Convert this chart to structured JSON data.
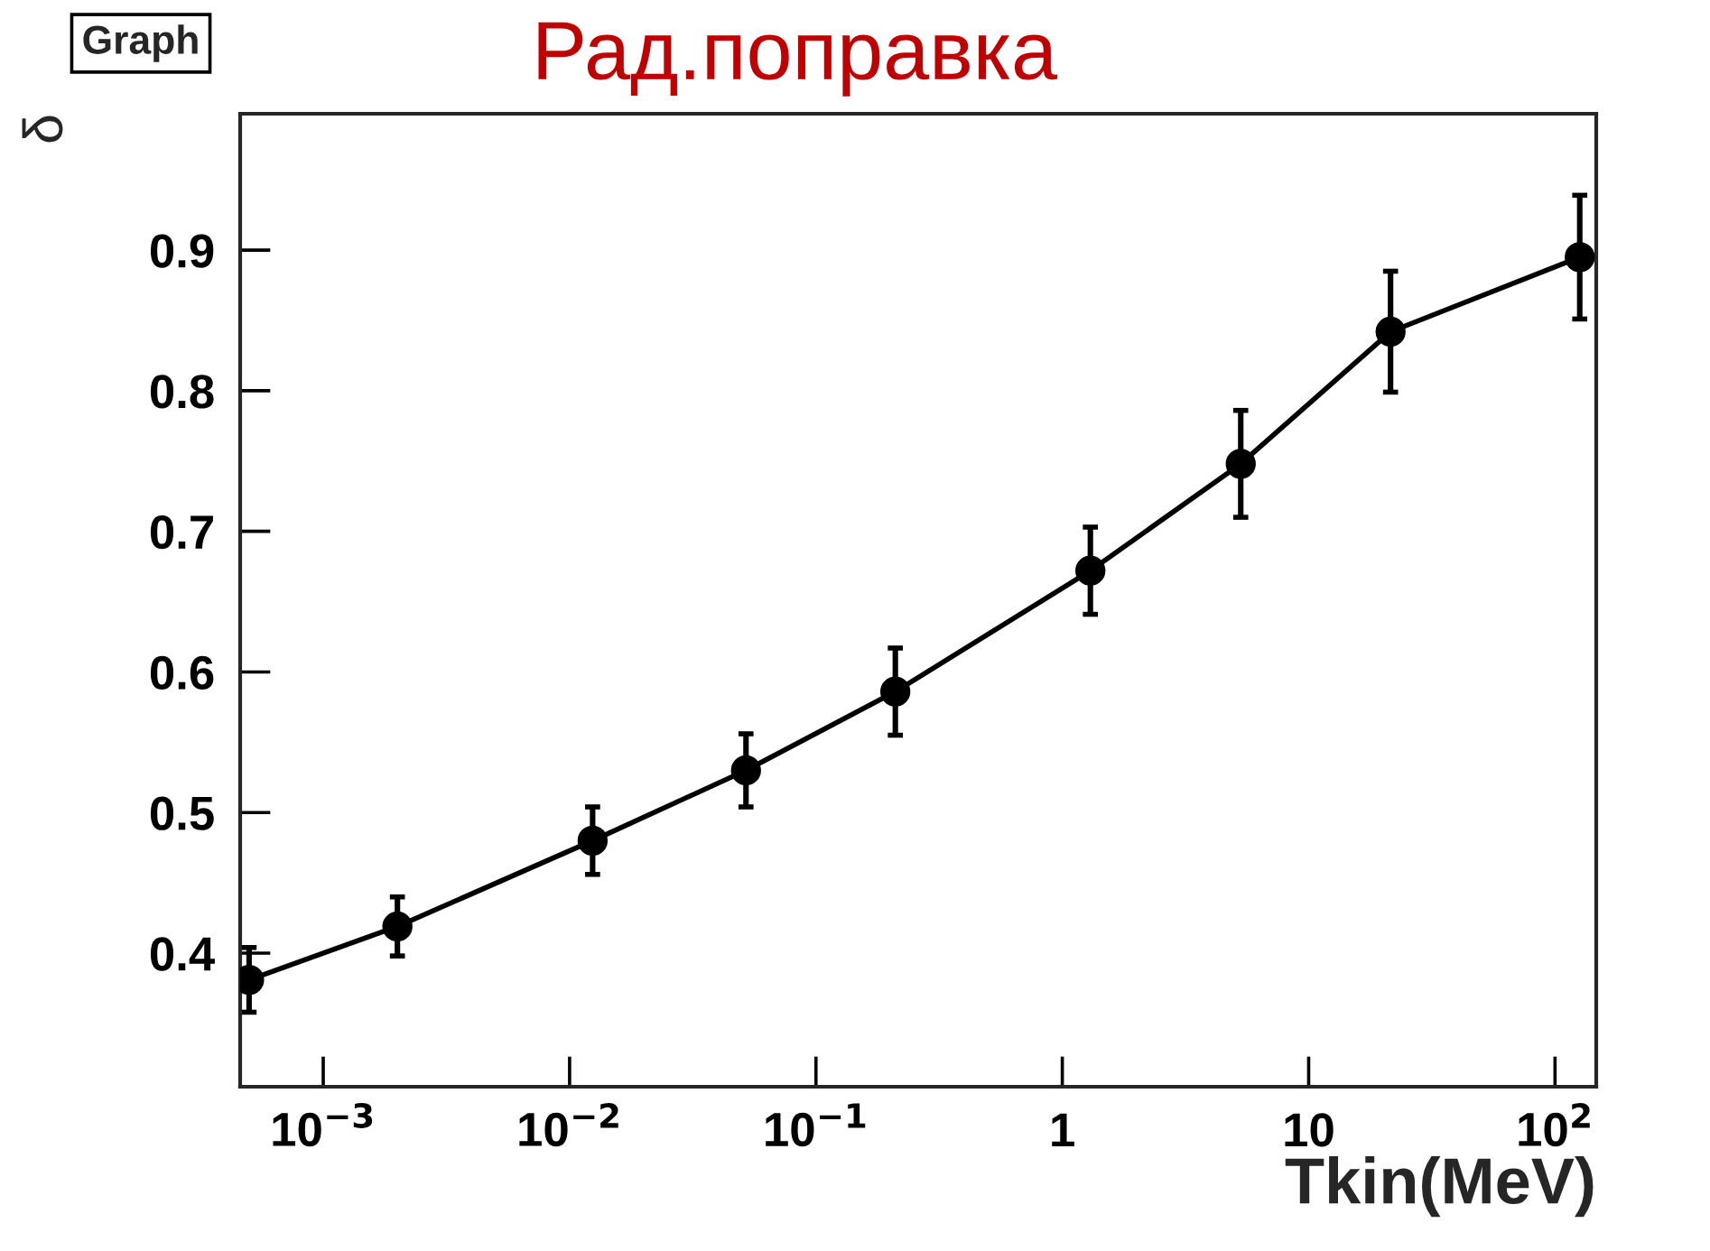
{
  "chart_data": {
    "type": "line",
    "title": "Рад.поправка",
    "xlabel": "Tkin(MeV)",
    "ylabel": "δ",
    "annotations": [
      "Graph"
    ],
    "x": [
      0.0005,
      0.002,
      0.0124,
      0.052,
      0.21,
      1.3,
      5.3,
      21.5,
      126
    ],
    "series": [
      {
        "color": "#000000",
        "values": [
          0.381,
          0.419,
          0.48,
          0.53,
          0.586,
          0.672,
          0.748,
          0.842,
          0.895
        ],
        "errors": [
          0.023,
          0.021,
          0.024,
          0.026,
          0.031,
          0.031,
          0.038,
          0.043,
          0.044
        ]
      }
    ],
    "log": "x",
    "marker": "circle",
    "line_style": "solid",
    "grid": false,
    "legend": false,
    "xlim": [
      0.00046,
      147
    ],
    "ylim": [
      0.305,
      0.997
    ],
    "xticks": [
      {
        "value": 0.001,
        "label": "10$^{−3}$"
      },
      {
        "value": 0.01,
        "label": "10$^{−2}$"
      },
      {
        "value": 0.1,
        "label": "10$^{−1}$"
      },
      1,
      10,
      {
        "value": 100,
        "label": "10$^{2}$"
      }
    ],
    "yticks": [
      0.4,
      0.5,
      0.6,
      0.7,
      0.8,
      0.9
    ]
  }
}
